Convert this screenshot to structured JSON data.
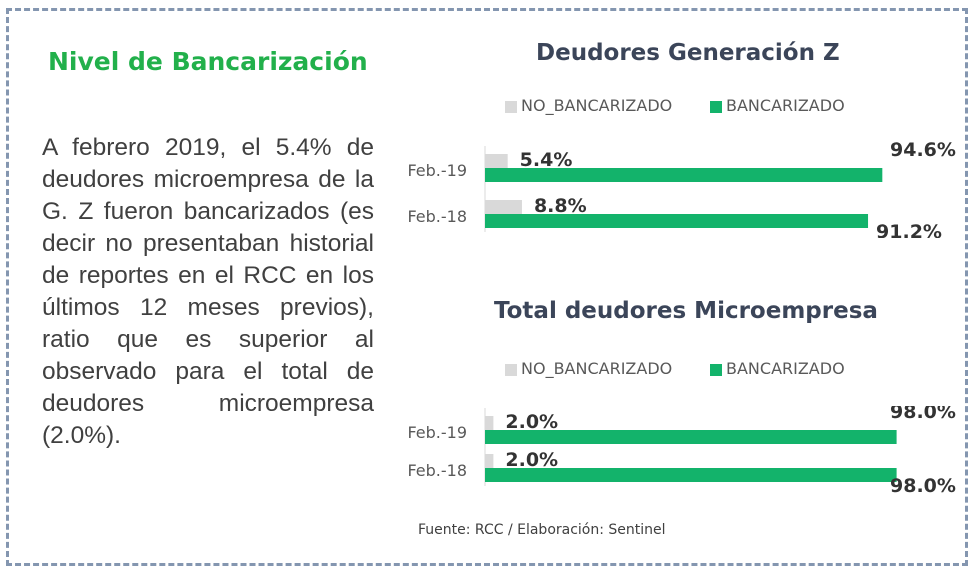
{
  "panel": {
    "title": "Nivel de Bancarización",
    "paragraph": "A febrero 2019, el 5.4% de deudores microempresa de la G. Z fueron bancarizados (es decir no presentaban historial de reportes en el RCC en los últimos 12 meses previos), ratio que es superior al observado para el total de deudores microempresa (2.0%).",
    "source": "Fuente: RCC / Elaboración: Sentinel"
  },
  "colors": {
    "no_bancarizado": "#d9d9d9",
    "bancarizado": "#13b36b"
  },
  "chart_data": [
    {
      "type": "bar",
      "orientation": "horizontal",
      "title": "Deudores Generación Z",
      "categories": [
        "Feb.-19",
        "Feb.-18"
      ],
      "series": [
        {
          "name": "NO_BANCARIZADO",
          "values": [
            5.4,
            8.8
          ],
          "labels": [
            "5.4%",
            "8.8%"
          ]
        },
        {
          "name": "BANCARIZADO",
          "values": [
            94.6,
            91.2
          ],
          "labels": [
            "94.6%",
            "91.2%"
          ]
        }
      ],
      "xlim": [
        0,
        100
      ],
      "legend": "top",
      "grid": false
    },
    {
      "type": "bar",
      "orientation": "horizontal",
      "title": "Total deudores Microempresa",
      "categories": [
        "Feb.-19",
        "Feb.-18"
      ],
      "series": [
        {
          "name": "NO_BANCARIZADO",
          "values": [
            2.0,
            2.0
          ],
          "labels": [
            "2.0%",
            "2.0%"
          ]
        },
        {
          "name": "BANCARIZADO",
          "values": [
            98.0,
            98.0
          ],
          "labels": [
            "98.0%",
            "98.0%"
          ]
        }
      ],
      "xlim": [
        0,
        100
      ],
      "legend": "top",
      "grid": false
    }
  ]
}
